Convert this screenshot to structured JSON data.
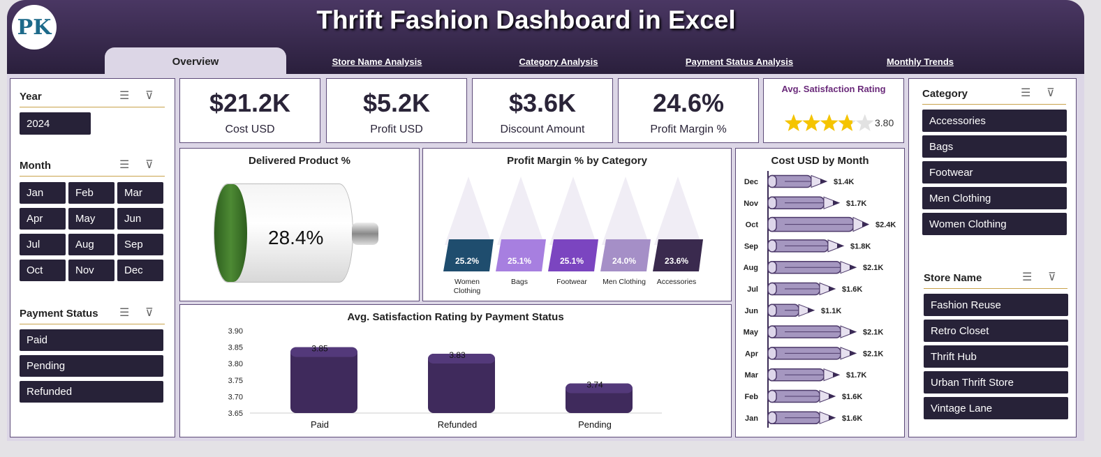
{
  "header": {
    "title": "Thrift Fashion Dashboard in Excel",
    "logo_text": "PK"
  },
  "tabs": [
    {
      "label": "Overview"
    },
    {
      "label": "Store Name Analysis"
    },
    {
      "label": "Category Analysis"
    },
    {
      "label": "Payment Status Analysis"
    },
    {
      "label": "Monthly Trends"
    }
  ],
  "slicers": {
    "year": {
      "title": "Year",
      "items": [
        "2024"
      ]
    },
    "month": {
      "title": "Month",
      "items": [
        "Jan",
        "Feb",
        "Mar",
        "Apr",
        "May",
        "Jun",
        "Jul",
        "Aug",
        "Sep",
        "Oct",
        "Nov",
        "Dec"
      ]
    },
    "payment": {
      "title": "Payment Status",
      "items": [
        "Paid",
        "Pending",
        "Refunded"
      ]
    },
    "category": {
      "title": "Category",
      "items": [
        "Accessories",
        "Bags",
        "Footwear",
        "Men Clothing",
        "Women Clothing"
      ]
    },
    "store": {
      "title": "Store Name",
      "items": [
        "Fashion Reuse",
        "Retro Closet",
        "Thrift Hub",
        "Urban Thrift Store",
        "Vintage Lane"
      ]
    }
  },
  "kpis": [
    {
      "value": "$21.2K",
      "label": "Cost USD"
    },
    {
      "value": "$5.2K",
      "label": "Profit USD"
    },
    {
      "value": "$3.6K",
      "label": "Discount Amount"
    },
    {
      "value": "24.6%",
      "label": "Profit Margin %"
    }
  ],
  "rating": {
    "title": "Avg. Satisfaction Rating",
    "value": "3.80",
    "stars": 3.8,
    "color": "#f5c400"
  },
  "delivered": {
    "title": "Delivered Product %",
    "value": "28.4%",
    "fill": 0.284
  },
  "chart_data": [
    {
      "type": "bar",
      "title": "Profit Margin % by Category",
      "categories": [
        "Women Clothing",
        "Bags",
        "Footwear",
        "Men Clothing",
        "Accessories"
      ],
      "values": [
        25.2,
        25.1,
        25.1,
        24.0,
        23.6
      ],
      "labels": [
        "25.2%",
        "25.1%",
        "25.1%",
        "24.0%",
        "23.6%"
      ],
      "colors": [
        "#1f4d6e",
        "#a77fe0",
        "#7b45c0",
        "#a58fc7",
        "#3a2a4e"
      ]
    },
    {
      "type": "bar",
      "title": "Avg. Satisfaction Rating by Payment Status",
      "categories": [
        "Paid",
        "Refunded",
        "Pending"
      ],
      "values": [
        3.85,
        3.83,
        3.74
      ],
      "ylim": [
        3.65,
        3.9
      ],
      "yticks": [
        "3.65",
        "3.70",
        "3.75",
        "3.80",
        "3.85",
        "3.90"
      ],
      "grid": false
    },
    {
      "type": "bar",
      "orientation": "horizontal",
      "title": "Cost USD by Month",
      "categories": [
        "Dec",
        "Nov",
        "Oct",
        "Sep",
        "Aug",
        "Jul",
        "Jun",
        "May",
        "Apr",
        "Mar",
        "Feb",
        "Jan"
      ],
      "values": [
        1.4,
        1.7,
        2.4,
        1.8,
        2.1,
        1.6,
        1.1,
        2.1,
        2.1,
        1.7,
        1.6,
        1.6
      ],
      "labels": [
        "$1.4K",
        "$1.7K",
        "$2.4K",
        "$1.8K",
        "$2.1K",
        "$1.6K",
        "$1.1K",
        "$2.1K",
        "$2.1K",
        "$1.7K",
        "$1.6K",
        "$1.6K"
      ]
    }
  ]
}
